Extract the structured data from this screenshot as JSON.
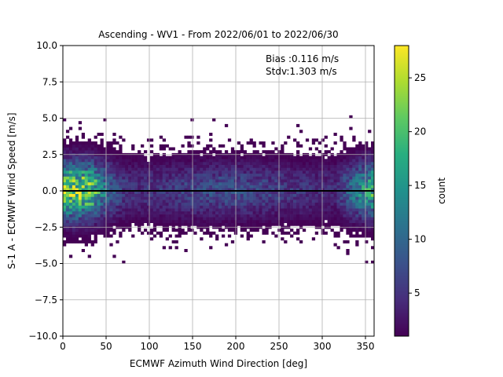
{
  "chart_data": {
    "type": "heatmap",
    "title": "Ascending - WV1 - From 2022/06/01 to 2022/06/30",
    "xlabel": "ECMWF Azimuth Wind Direction [deg]",
    "ylabel": "S-1 A - ECMWF Wind Speed [m/s]",
    "xlim": [
      0,
      360
    ],
    "ylim": [
      -10,
      10
    ],
    "x_ticks": [
      "0",
      "50",
      "100",
      "150",
      "200",
      "250",
      "300",
      "350"
    ],
    "y_ticks": [
      "10.0",
      "7.5",
      "5.0",
      "2.5",
      "0.0",
      "−2.5",
      "−5.0",
      "−7.5",
      "−10.0"
    ],
    "grid": true,
    "colormap": "viridis",
    "colorbar": {
      "label": "count",
      "range": [
        1,
        28
      ],
      "ticks": [
        "5",
        "10",
        "15",
        "20",
        "25"
      ]
    },
    "annotations": [
      "Bias :0.116 m/s",
      "Stdv:1.303 m/s"
    ],
    "bias_m_s": 0.116,
    "stdv_m_s": 1.303,
    "reference_line_y": 0.0,
    "bin_width_x_deg": 3.6,
    "bin_width_y_m_s": 0.2
  }
}
